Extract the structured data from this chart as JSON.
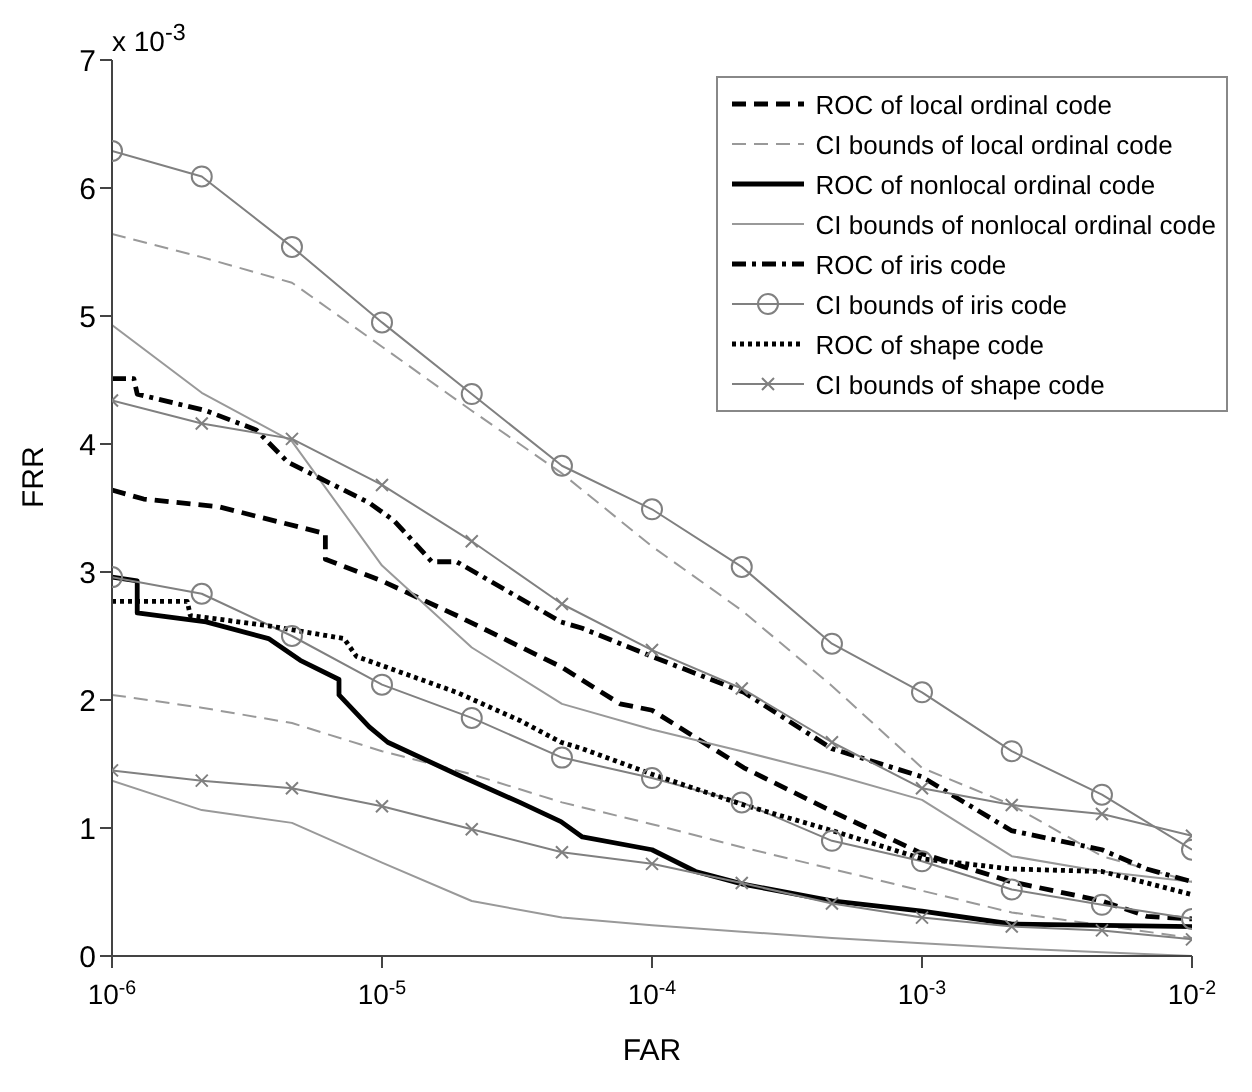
{
  "chart_data": {
    "type": "line",
    "xlabel": "FAR",
    "ylabel": "FRR",
    "log": "x",
    "legend": "top right",
    "xlim": [
      1e-06,
      0.01
    ],
    "xticks": [
      {
        "value": 1e-06,
        "label": "10$^{-6}$"
      },
      {
        "value": 1e-05,
        "label": "10$^{-5}$"
      },
      {
        "value": 0.0001,
        "label": "10$^{-4}$"
      },
      {
        "value": 0.001,
        "label": "10$^{-3}$"
      },
      {
        "value": 0.01,
        "label": "10$^{-2}$"
      }
    ],
    "ylim": [
      0,
      7
    ],
    "yticks": [
      0,
      1,
      2,
      3,
      4,
      5,
      6,
      7
    ],
    "annotations": [
      "x 10$^{-3}$"
    ],
    "series": [
      {
        "name": "ROC of local ordinal code",
        "color": "#000000",
        "line_style": "dashed",
        "marker": "none",
        "x": [
          1e-06,
          1.31e-06,
          2.48e-06,
          6.17e-06,
          6.17e-06,
          1e-05,
          1.89e-05,
          4.6e-05,
          7.62e-05,
          0.0001,
          0.000219,
          0.000464,
          0.001,
          0.00214,
          0.00464,
          0.0068,
          0.01
        ],
        "values": [
          3.64,
          3.57,
          3.51,
          3.3,
          3.1,
          2.93,
          2.66,
          2.26,
          1.97,
          1.92,
          1.47,
          1.13,
          0.8,
          0.58,
          0.43,
          0.31,
          0.29
        ]
      },
      {
        "name": "CI bounds of local ordinal code",
        "color": "#999999",
        "line_style": "dashed",
        "marker": "none",
        "x": [
          1e-06,
          2.15e-06,
          4.64e-06,
          1e-05,
          2.15e-05,
          4.64e-05,
          0.0001,
          0.000215,
          0.000464,
          0.001,
          0.00215,
          0.00464,
          0.01
        ],
        "values": [
          5.64,
          5.46,
          5.26,
          4.76,
          4.26,
          3.77,
          3.2,
          2.7,
          2.11,
          1.47,
          1.18,
          0.78,
          0.58
        ]
      },
      {
        "color": "#999999",
        "line_style": "dashed",
        "marker": "none",
        "x": [
          1e-06,
          2.15e-06,
          4.64e-06,
          1e-05,
          2.15e-05,
          4.64e-05,
          0.0001,
          0.000215,
          0.000464,
          0.001,
          0.00215,
          0.00464,
          0.01
        ],
        "values": [
          2.04,
          1.94,
          1.82,
          1.6,
          1.42,
          1.2,
          1.03,
          0.85,
          0.68,
          0.51,
          0.34,
          0.24,
          0.14
        ]
      },
      {
        "name": "ROC of nonlocal ordinal code",
        "color": "#000000",
        "line_style": "solid",
        "marker": "none",
        "x": [
          1e-06,
          1.24e-06,
          1.24e-06,
          2.23e-06,
          3.8e-06,
          4.98e-06,
          6.93e-06,
          6.93e-06,
          8.97e-06,
          1.05e-05,
          1.89e-05,
          3.24e-05,
          4.6e-05,
          5.52e-05,
          0.0001,
          0.000145,
          0.000219,
          0.000464,
          0.001,
          0.00214,
          0.01
        ],
        "values": [
          2.96,
          2.93,
          2.68,
          2.61,
          2.48,
          2.31,
          2.16,
          2.04,
          1.79,
          1.67,
          1.42,
          1.2,
          1.05,
          0.93,
          0.83,
          0.66,
          0.56,
          0.43,
          0.35,
          0.25,
          0.23
        ]
      },
      {
        "name": "CI bounds of nonlocal ordinal code",
        "color": "#999999",
        "line_style": "solid",
        "marker": "none",
        "x": [
          1e-06,
          2.15e-06,
          4.64e-06,
          1e-05,
          2.15e-05,
          4.64e-05,
          0.0001,
          0.000215,
          0.000464,
          0.001,
          0.00215,
          0.00464,
          0.01
        ],
        "values": [
          4.93,
          4.4,
          4.02,
          3.05,
          2.41,
          1.97,
          1.77,
          1.6,
          1.42,
          1.22,
          0.78,
          0.66,
          0.58
        ]
      },
      {
        "color": "#999999",
        "line_style": "solid",
        "marker": "none",
        "x": [
          1e-06,
          2.15e-06,
          4.64e-06,
          1e-05,
          2.15e-05,
          4.64e-05,
          0.0001,
          0.000215,
          0.000464,
          0.001,
          0.00215,
          0.00464,
          0.01
        ],
        "values": [
          1.37,
          1.14,
          1.04,
          0.73,
          0.43,
          0.3,
          0.24,
          0.19,
          0.14,
          0.1,
          0.06,
          0.03,
          0
        ]
      },
      {
        "name": "ROC of iris code",
        "color": "#000000",
        "line_style": "dashdot",
        "marker": "none",
        "x": [
          1e-06,
          1.205e-06,
          1.24e-06,
          2.23e-06,
          3.42e-06,
          4.47e-06,
          8.97e-06,
          1.11e-05,
          1.53e-05,
          1.89e-05,
          4.6e-05,
          5.52e-05,
          0.0001,
          0.000219,
          0.000464,
          0.001,
          0.00214,
          0.00464,
          0.0068,
          0.01
        ],
        "values": [
          4.51,
          4.51,
          4.39,
          4.26,
          4.11,
          3.86,
          3.54,
          3.4,
          3.08,
          3.08,
          2.61,
          2.56,
          2.34,
          2.06,
          1.62,
          1.4,
          0.98,
          0.83,
          0.68,
          0.58
        ]
      },
      {
        "name": "CI bounds of iris code",
        "color": "#808080",
        "line_style": "solid",
        "marker": "circle",
        "x": [
          1e-06,
          2.15e-06,
          4.64e-06,
          1e-05,
          2.15e-05,
          4.64e-05,
          0.0001,
          0.000215,
          0.000464,
          0.001,
          0.00215,
          0.00464,
          0.01
        ],
        "values": [
          6.29,
          6.09,
          5.54,
          4.95,
          4.39,
          3.83,
          3.49,
          3.04,
          2.44,
          2.06,
          1.6,
          1.26,
          0.83
        ]
      },
      {
        "color": "#808080",
        "line_style": "solid",
        "marker": "circle",
        "x": [
          1e-06,
          2.15e-06,
          4.64e-06,
          1e-05,
          2.15e-05,
          4.64e-05,
          0.0001,
          0.000215,
          0.000464,
          0.001,
          0.00215,
          0.00464,
          0.01
        ],
        "values": [
          2.96,
          2.83,
          2.5,
          2.12,
          1.86,
          1.55,
          1.39,
          1.2,
          0.9,
          0.74,
          0.52,
          0.4,
          0.29
        ]
      },
      {
        "name": "ROC of shape code",
        "color": "#000000",
        "line_style": "dotted",
        "marker": "none",
        "x": [
          1e-06,
          1.9e-06,
          1.95e-06,
          3.8e-06,
          7.23e-06,
          8.05e-06,
          1.89e-05,
          3.24e-05,
          4.6e-05,
          5.52e-05,
          0.0001,
          0.000219,
          0.000464,
          0.001,
          0.00214,
          0.00464,
          0.01
        ],
        "values": [
          2.77,
          2.77,
          2.66,
          2.58,
          2.48,
          2.34,
          2.06,
          1.84,
          1.67,
          1.62,
          1.42,
          1.18,
          0.98,
          0.76,
          0.68,
          0.66,
          0.48
        ]
      },
      {
        "name": "CI bounds of shape code",
        "color": "#808080",
        "line_style": "solid",
        "marker": "cross",
        "x": [
          1e-06,
          2.15e-06,
          4.64e-06,
          1e-05,
          2.15e-05,
          4.64e-05,
          0.0001,
          0.000215,
          0.000464,
          0.001,
          0.00215,
          0.00464,
          0.01
        ],
        "values": [
          4.34,
          4.16,
          4.04,
          3.68,
          3.24,
          2.75,
          2.39,
          2.09,
          1.67,
          1.31,
          1.18,
          1.11,
          0.94
        ]
      },
      {
        "color": "#808080",
        "line_style": "solid",
        "marker": "cross",
        "x": [
          1e-06,
          2.15e-06,
          4.64e-06,
          1e-05,
          2.15e-05,
          4.64e-05,
          0.0001,
          0.000215,
          0.000464,
          0.001,
          0.00215,
          0.00464,
          0.01
        ],
        "values": [
          1.45,
          1.37,
          1.31,
          1.17,
          0.99,
          0.81,
          0.72,
          0.57,
          0.41,
          0.3,
          0.23,
          0.2,
          0.13
        ]
      }
    ]
  }
}
